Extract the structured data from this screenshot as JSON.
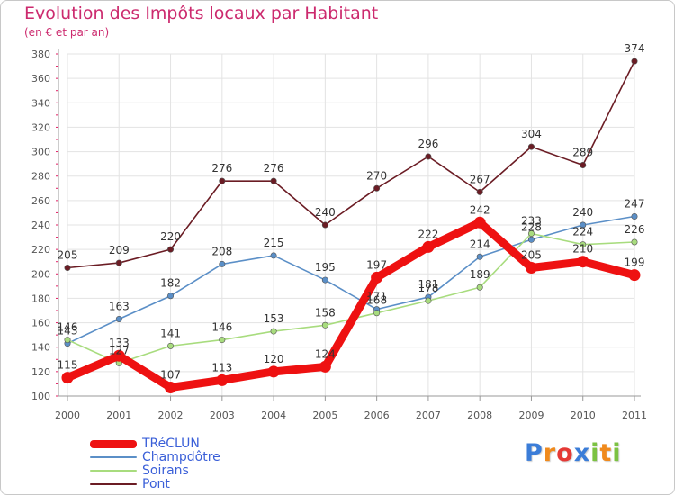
{
  "title": "Evolution des Impôts locaux par Habitant",
  "subtitle": "(en € et par an)",
  "chart_data": {
    "type": "line",
    "title": "Evolution des Impôts locaux par Habitant",
    "subtitle": "(en € et par an)",
    "xlabel": "",
    "ylabel": "",
    "ylim": [
      100,
      380
    ],
    "yticks": [
      100,
      120,
      140,
      160,
      180,
      200,
      220,
      240,
      260,
      280,
      300,
      320,
      340,
      360,
      380
    ],
    "categories": [
      "2000",
      "2001",
      "2002",
      "2003",
      "2004",
      "2005",
      "2006",
      "2007",
      "2008",
      "2009",
      "2010",
      "2011"
    ],
    "grid": true,
    "legend_position": "bottom-left",
    "series": [
      {
        "name": "Pont",
        "color": "#6b1c24",
        "values": [
          205,
          209,
          220,
          276,
          276,
          240,
          270,
          296,
          267,
          304,
          289,
          374
        ]
      },
      {
        "name": "Champdôtre",
        "color": "#5b8fc7",
        "values": [
          143,
          163,
          182,
          208,
          215,
          195,
          171,
          181,
          214,
          228,
          240,
          247
        ]
      },
      {
        "name": "Soirans",
        "color": "#a8dc7e",
        "values": [
          146,
          127,
          141,
          146,
          153,
          158,
          168,
          178,
          189,
          233,
          224,
          226
        ]
      },
      {
        "name": "TRéCLUN",
        "color": "#ee1111",
        "values": [
          115,
          133,
          107,
          113,
          120,
          124,
          197,
          222,
          242,
          205,
          210,
          199
        ]
      }
    ]
  },
  "legend": [
    {
      "label": "TRéCLUN",
      "color": "#ee1111"
    },
    {
      "label": "Champdôtre",
      "color": "#5b8fc7"
    },
    {
      "label": "Soirans",
      "color": "#a8dc7e"
    },
    {
      "label": "Pont",
      "color": "#6b1c24"
    }
  ],
  "logo": {
    "letters": [
      "P",
      "r",
      "o",
      "x",
      "i",
      "t",
      "i"
    ],
    "colors": [
      "#3b7dd8",
      "#f08a1c",
      "#e53935",
      "#3b7dd8",
      "#7cc242",
      "#f08a1c",
      "#7cc242"
    ]
  }
}
